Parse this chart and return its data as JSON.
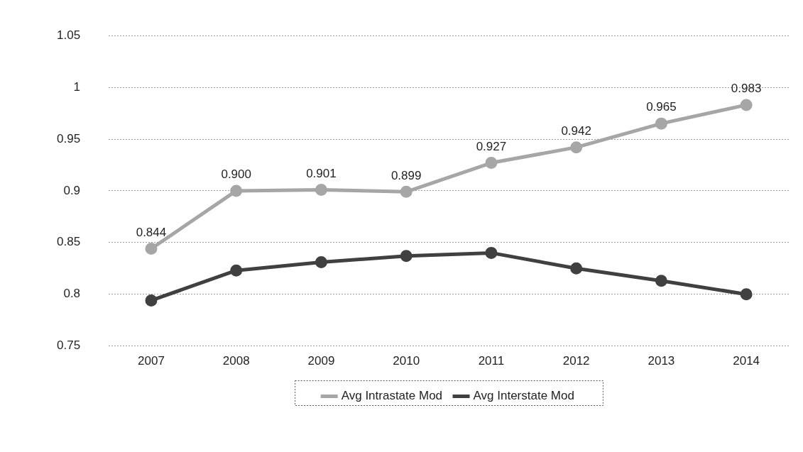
{
  "chart_data": {
    "type": "line",
    "categories": [
      "2007",
      "2008",
      "2009",
      "2010",
      "2011",
      "2012",
      "2013",
      "2014"
    ],
    "series": [
      {
        "name": "Avg Intrastate Mod",
        "color": "#a6a6a6",
        "values": [
          0.844,
          0.9,
          0.901,
          0.899,
          0.927,
          0.942,
          0.965,
          0.983
        ],
        "value_labels": [
          "0.844",
          "0.900",
          "0.901",
          "0.899",
          "0.927",
          "0.942",
          "0.965",
          "0.983"
        ]
      },
      {
        "name": "Avg Interstate Mod",
        "color": "#404040",
        "values": [
          0.794,
          0.823,
          0.831,
          0.837,
          0.84,
          0.825,
          0.813,
          0.8
        ]
      }
    ],
    "ylim": [
      0.75,
      1.05
    ],
    "yticks": [
      0.75,
      0.8,
      0.85,
      0.9,
      0.95,
      1,
      1.05
    ],
    "grid": "y",
    "legend": "bottom",
    "marker": "circle",
    "line_style": "solid"
  }
}
